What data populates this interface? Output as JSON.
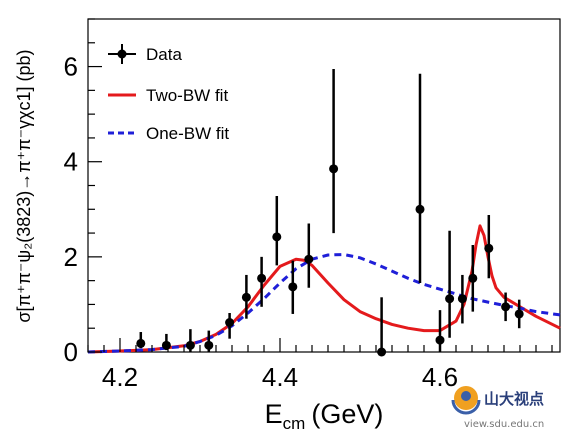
{
  "chart_data": {
    "type": "scatter",
    "title": "",
    "xlabel": {
      "main": "E",
      "sub": "cm",
      "unit": "(GeV)"
    },
    "ylabel": "σ[π⁺π⁻ψ₂(3823)→π⁺π⁻γχc1] (pb)",
    "xlim": [
      4.16,
      4.75
    ],
    "ylim": [
      0,
      7.0
    ],
    "x_ticks": [
      4.2,
      4.4,
      4.6
    ],
    "x_tick_labels": [
      "4.2",
      "4.4",
      "4.6"
    ],
    "y_ticks": [
      0,
      2,
      4,
      6
    ],
    "y_tick_labels": [
      "0",
      "2",
      "4",
      "6"
    ],
    "grid": false,
    "legend_position": "top-left",
    "series": [
      {
        "name": "Data",
        "kind": "points-with-errors",
        "color": "#000000",
        "points": [
          {
            "x": 4.226,
            "y": 0.18,
            "lo": 0.08,
            "hi": 0.42
          },
          {
            "x": 4.258,
            "y": 0.14,
            "lo": 0.04,
            "hi": 0.38
          },
          {
            "x": 4.288,
            "y": 0.14,
            "lo": 0.0,
            "hi": 0.48
          },
          {
            "x": 4.311,
            "y": 0.14,
            "lo": 0.0,
            "hi": 0.45
          },
          {
            "x": 4.337,
            "y": 0.62,
            "lo": 0.28,
            "hi": 0.82
          },
          {
            "x": 4.358,
            "y": 1.15,
            "lo": 0.7,
            "hi": 1.62
          },
          {
            "x": 4.377,
            "y": 1.55,
            "lo": 0.95,
            "hi": 2.0
          },
          {
            "x": 4.396,
            "y": 2.42,
            "lo": 1.82,
            "hi": 3.28
          },
          {
            "x": 4.416,
            "y": 1.37,
            "lo": 0.8,
            "hi": 1.92
          },
          {
            "x": 4.436,
            "y": 1.95,
            "lo": 1.35,
            "hi": 2.7
          },
          {
            "x": 4.467,
            "y": 3.85,
            "lo": 2.5,
            "hi": 5.95
          },
          {
            "x": 4.527,
            "y": 0.0,
            "lo": 0.0,
            "hi": 1.15
          },
          {
            "x": 4.575,
            "y": 3.0,
            "lo": 1.45,
            "hi": 5.85
          },
          {
            "x": 4.6,
            "y": 0.25,
            "lo": 0.0,
            "hi": 0.88
          },
          {
            "x": 4.612,
            "y": 1.12,
            "lo": 0.3,
            "hi": 2.55
          },
          {
            "x": 4.628,
            "y": 1.12,
            "lo": 0.6,
            "hi": 1.62
          },
          {
            "x": 4.641,
            "y": 1.55,
            "lo": 0.85,
            "hi": 2.25
          },
          {
            "x": 4.661,
            "y": 2.18,
            "lo": 1.55,
            "hi": 2.88
          },
          {
            "x": 4.682,
            "y": 0.95,
            "lo": 0.65,
            "hi": 1.25
          },
          {
            "x": 4.699,
            "y": 0.8,
            "lo": 0.5,
            "hi": 1.1
          }
        ]
      },
      {
        "name": "Two-BW fit",
        "kind": "curve",
        "style": "solid",
        "color": "#e41a1c",
        "x": [
          4.16,
          4.2,
          4.24,
          4.28,
          4.3,
          4.32,
          4.34,
          4.36,
          4.38,
          4.4,
          4.42,
          4.43,
          4.44,
          4.46,
          4.48,
          4.5,
          4.52,
          4.54,
          4.56,
          4.58,
          4.6,
          4.62,
          4.63,
          4.64,
          4.645,
          4.65,
          4.655,
          4.66,
          4.665,
          4.67,
          4.68,
          4.7,
          4.72,
          4.75
        ],
        "y": [
          0.0,
          0.02,
          0.05,
          0.13,
          0.22,
          0.37,
          0.6,
          0.95,
          1.4,
          1.8,
          1.95,
          1.93,
          1.82,
          1.45,
          1.1,
          0.85,
          0.7,
          0.58,
          0.5,
          0.45,
          0.45,
          0.65,
          1.0,
          1.7,
          2.25,
          2.65,
          2.45,
          2.0,
          1.6,
          1.35,
          1.15,
          0.95,
          0.75,
          0.5
        ]
      },
      {
        "name": "One-BW fit",
        "kind": "curve",
        "style": "dashed",
        "color": "#1f1fd8",
        "x": [
          4.16,
          4.2,
          4.24,
          4.28,
          4.3,
          4.32,
          4.34,
          4.36,
          4.38,
          4.4,
          4.42,
          4.44,
          4.46,
          4.48,
          4.5,
          4.52,
          4.54,
          4.56,
          4.58,
          4.6,
          4.62,
          4.64,
          4.66,
          4.68,
          4.7,
          4.72,
          4.75
        ],
        "y": [
          0.0,
          0.02,
          0.05,
          0.12,
          0.22,
          0.35,
          0.55,
          0.82,
          1.12,
          1.45,
          1.75,
          1.95,
          2.04,
          2.05,
          1.98,
          1.85,
          1.7,
          1.55,
          1.42,
          1.32,
          1.22,
          1.12,
          1.05,
          0.98,
          0.92,
          0.85,
          0.78
        ]
      }
    ]
  },
  "legend": {
    "items": [
      {
        "label": "Data"
      },
      {
        "label": "Two-BW fit"
      },
      {
        "label": "One-BW fit"
      }
    ]
  },
  "watermark": {
    "title": "山大视点",
    "url": "view.sdu.edu.cn"
  }
}
